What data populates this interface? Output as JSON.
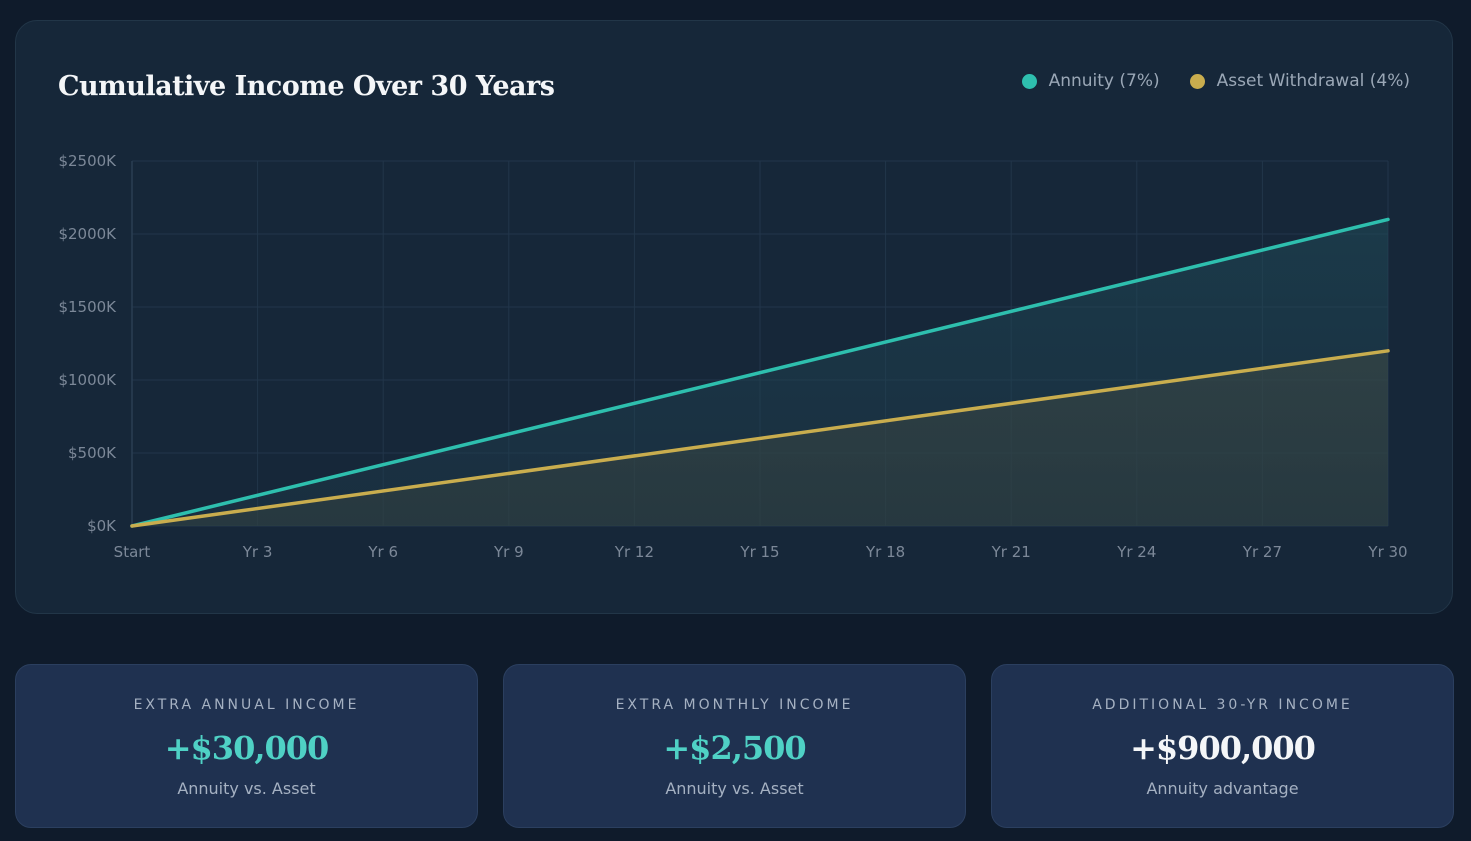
{
  "colors": {
    "annuity": "#2ebfae",
    "asset": "#c9ad4e",
    "accent_value": "#4fd1c5",
    "white_value": "#f4f6f8"
  },
  "chart_data": {
    "type": "line",
    "title": "Cumulative Income Over 30 Years",
    "x": [
      0,
      30
    ],
    "xticks": [
      "Start",
      "Yr 3",
      "Yr 6",
      "Yr 9",
      "Yr 12",
      "Yr 15",
      "Yr 18",
      "Yr 21",
      "Yr 24",
      "Yr 27",
      "Yr 30"
    ],
    "yticks": [
      "$0K",
      "$500K",
      "$1000K",
      "$1500K",
      "$2000K",
      "$2500K"
    ],
    "ylim": [
      0,
      2500000
    ],
    "xlim": [
      0,
      30
    ],
    "grid": true,
    "legend_position": "top-right",
    "series": [
      {
        "name": "Annuity (7%)",
        "x": [
          0,
          30
        ],
        "values": [
          0,
          2100000
        ],
        "color": "#2ebfae"
      },
      {
        "name": "Asset Withdrawal (4%)",
        "x": [
          0,
          30
        ],
        "values": [
          0,
          1200000
        ],
        "color": "#c9ad4e"
      }
    ]
  },
  "stats": [
    {
      "label": "EXTRA ANNUAL INCOME",
      "value": "+$30,000",
      "sub": "Annuity vs. Asset",
      "tone": "accent"
    },
    {
      "label": "EXTRA MONTHLY INCOME",
      "value": "+$2,500",
      "sub": "Annuity vs. Asset",
      "tone": "accent"
    },
    {
      "label": "ADDITIONAL 30-YR INCOME",
      "value": "+$900,000",
      "sub": "Annuity advantage",
      "tone": "white"
    }
  ]
}
